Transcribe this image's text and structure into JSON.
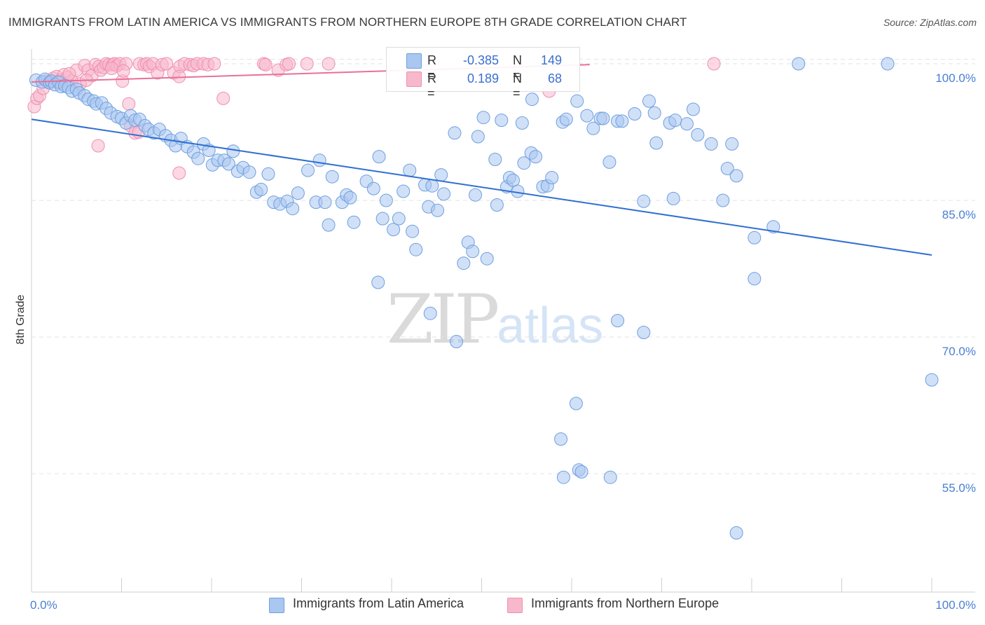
{
  "header": {
    "title": "IMMIGRANTS FROM LATIN AMERICA VS IMMIGRANTS FROM NORTHERN EUROPE 8TH GRADE CORRELATION CHART",
    "source": "Source: ZipAtlas.com"
  },
  "watermark": {
    "zip": "ZIP",
    "atlas": "atlas"
  },
  "legend": {
    "rows": [
      {
        "r_label": "R =",
        "r_value": "-0.385",
        "n_label": "N =",
        "n_value": "149",
        "color": "#a9c7f0"
      },
      {
        "r_label": "R =",
        "r_value": "0.189",
        "n_label": "N =",
        "n_value": "68",
        "color": "#f7b8cc"
      }
    ]
  },
  "bottom_legend": {
    "series1": "Immigrants from Latin America",
    "series2": "Immigrants from Northern Europe"
  },
  "colors": {
    "blue_fill": "#a9c7f0",
    "blue_stroke": "#6f9fe0",
    "blue_line": "#2f6fd1",
    "pink_fill": "#f7b8cc",
    "pink_stroke": "#ef8fb0",
    "pink_line": "#e8709a",
    "grid": "#e3e3e3",
    "tick_text": "#4a7fd4"
  },
  "chart_data": {
    "type": "scatter",
    "title": "IMMIGRANTS FROM LATIN AMERICA VS IMMIGRANTS FROM NORTHERN EUROPE 8TH GRADE CORRELATION CHART",
    "xlabel": "",
    "ylabel": "8th Grade",
    "xlim": [
      0,
      100
    ],
    "ylim": [
      42,
      101
    ],
    "x_tick_labels": [
      "0.0%",
      "100.0%"
    ],
    "y_ticks": [
      55,
      70,
      85,
      100
    ],
    "y_tick_labels": [
      "55.0%",
      "70.0%",
      "85.0%",
      "100.0%"
    ],
    "grid": true,
    "legend_position": "top-center",
    "series": [
      {
        "name": "Immigrants from Latin America",
        "r": -0.385,
        "n": 149,
        "trend": [
          [
            0,
            93.9
          ],
          [
            100,
            79.0
          ]
        ],
        "points": [
          [
            0.5,
            98.2
          ],
          [
            1.2,
            98.0
          ],
          [
            1.5,
            98.3
          ],
          [
            2.0,
            97.9
          ],
          [
            2.2,
            98.1
          ],
          [
            2.6,
            97.7
          ],
          [
            3.0,
            98.0
          ],
          [
            3.3,
            97.5
          ],
          [
            3.7,
            97.6
          ],
          [
            4.1,
            97.4
          ],
          [
            4.5,
            97.0
          ],
          [
            5.0,
            97.2
          ],
          [
            5.3,
            96.8
          ],
          [
            5.9,
            96.5
          ],
          [
            6.3,
            96.1
          ],
          [
            6.9,
            95.9
          ],
          [
            7.2,
            95.6
          ],
          [
            7.8,
            95.7
          ],
          [
            8.3,
            95.1
          ],
          [
            8.8,
            94.6
          ],
          [
            9.5,
            94.2
          ],
          [
            10.0,
            94.0
          ],
          [
            10.5,
            93.5
          ],
          [
            11.0,
            94.3
          ],
          [
            11.5,
            93.8
          ],
          [
            12.0,
            93.9
          ],
          [
            12.6,
            93.2
          ],
          [
            13.0,
            92.8
          ],
          [
            13.6,
            92.4
          ],
          [
            14.2,
            92.8
          ],
          [
            14.9,
            92.1
          ],
          [
            15.5,
            91.6
          ],
          [
            16.0,
            91.0
          ],
          [
            16.6,
            91.8
          ],
          [
            17.3,
            90.9
          ],
          [
            18.0,
            90.3
          ],
          [
            18.5,
            89.6
          ],
          [
            19.1,
            91.2
          ],
          [
            19.7,
            90.5
          ],
          [
            20.1,
            88.9
          ],
          [
            20.7,
            89.4
          ],
          [
            21.4,
            89.4
          ],
          [
            21.9,
            89.0
          ],
          [
            22.4,
            90.4
          ],
          [
            22.9,
            88.2
          ],
          [
            23.5,
            88.6
          ],
          [
            24.2,
            88.1
          ],
          [
            25.0,
            85.9
          ],
          [
            25.5,
            86.2
          ],
          [
            26.3,
            87.9
          ],
          [
            26.9,
            84.8
          ],
          [
            27.6,
            84.6
          ],
          [
            28.4,
            84.9
          ],
          [
            29.0,
            84.1
          ],
          [
            29.6,
            85.8
          ],
          [
            30.7,
            88.3
          ],
          [
            31.6,
            84.8
          ],
          [
            32.0,
            89.4
          ],
          [
            32.6,
            84.8
          ],
          [
            33.4,
            87.6
          ],
          [
            34.5,
            84.8
          ],
          [
            35.0,
            85.6
          ],
          [
            35.8,
            82.6
          ],
          [
            35.4,
            85.3
          ],
          [
            37.2,
            87.1
          ],
          [
            38.0,
            86.3
          ],
          [
            38.6,
            89.8
          ],
          [
            39.0,
            83.0
          ],
          [
            39.4,
            85.0
          ],
          [
            40.2,
            81.8
          ],
          [
            40.8,
            83.0
          ],
          [
            41.3,
            86.0
          ],
          [
            42.0,
            88.3
          ],
          [
            42.3,
            81.6
          ],
          [
            42.7,
            79.6
          ],
          [
            43.7,
            86.7
          ],
          [
            44.1,
            84.3
          ],
          [
            44.5,
            86.6
          ],
          [
            45.1,
            83.9
          ],
          [
            45.5,
            87.8
          ],
          [
            45.8,
            85.7
          ],
          [
            47.0,
            92.4
          ],
          [
            48.0,
            78.1
          ],
          [
            48.5,
            80.4
          ],
          [
            49.0,
            79.4
          ],
          [
            49.3,
            85.6
          ],
          [
            49.6,
            92.0
          ],
          [
            50.2,
            94.1
          ],
          [
            50.6,
            78.6
          ],
          [
            51.5,
            89.5
          ],
          [
            51.7,
            84.5
          ],
          [
            52.2,
            93.8
          ],
          [
            52.8,
            86.5
          ],
          [
            53.1,
            87.5
          ],
          [
            53.5,
            87.2
          ],
          [
            54.0,
            86.0
          ],
          [
            54.5,
            93.5
          ],
          [
            54.7,
            89.1
          ],
          [
            55.5,
            90.2
          ],
          [
            55.6,
            96.1
          ],
          [
            56.0,
            89.8
          ],
          [
            56.8,
            86.5
          ],
          [
            57.3,
            86.6
          ],
          [
            57.8,
            87.5
          ],
          [
            59.0,
            93.6
          ],
          [
            59.4,
            93.9
          ],
          [
            60.6,
            95.9
          ],
          [
            61.7,
            94.3
          ],
          [
            62.4,
            92.9
          ],
          [
            63.2,
            94.0
          ],
          [
            63.5,
            94.0
          ],
          [
            64.2,
            89.2
          ],
          [
            65.1,
            93.7
          ],
          [
            65.6,
            93.7
          ],
          [
            67.0,
            94.5
          ],
          [
            68.0,
            84.9
          ],
          [
            68.6,
            95.9
          ],
          [
            69.2,
            94.6
          ],
          [
            69.4,
            91.3
          ],
          [
            70.9,
            93.5
          ],
          [
            71.3,
            85.2
          ],
          [
            71.5,
            93.8
          ],
          [
            72.8,
            93.4
          ],
          [
            73.5,
            95.0
          ],
          [
            74.0,
            92.2
          ],
          [
            75.5,
            91.2
          ],
          [
            76.8,
            85.0
          ],
          [
            77.3,
            88.5
          ],
          [
            77.8,
            91.2
          ],
          [
            78.3,
            87.7
          ],
          [
            80.3,
            80.9
          ],
          [
            82.4,
            82.1
          ],
          [
            80.3,
            76.4
          ],
          [
            60.5,
            62.7
          ],
          [
            59.1,
            54.6
          ],
          [
            58.8,
            58.8
          ],
          [
            60.8,
            55.4
          ],
          [
            61.1,
            55.2
          ],
          [
            64.3,
            54.6
          ],
          [
            65.1,
            71.8
          ],
          [
            78.3,
            48.5
          ],
          [
            85.2,
            100.0
          ],
          [
            95.1,
            100.0
          ],
          [
            100.0,
            65.3
          ],
          [
            44.3,
            72.6
          ],
          [
            47.2,
            69.5
          ],
          [
            38.5,
            76.0
          ],
          [
            68.0,
            70.5
          ],
          [
            33.0,
            82.3
          ]
        ]
      },
      {
        "name": "Immigrants from Northern Europe",
        "r": 0.189,
        "n": 68,
        "trend": [
          [
            0,
            98.0
          ],
          [
            62,
            99.9
          ]
        ],
        "points": [
          [
            0.3,
            95.3
          ],
          [
            0.6,
            96.2
          ],
          [
            0.9,
            96.5
          ],
          [
            1.3,
            97.3
          ],
          [
            1.6,
            98.1
          ],
          [
            2.0,
            98.0
          ],
          [
            2.4,
            98.4
          ],
          [
            2.8,
            98.6
          ],
          [
            3.2,
            98.2
          ],
          [
            3.6,
            98.8
          ],
          [
            4.0,
            98.5
          ],
          [
            4.5,
            98.1
          ],
          [
            5.0,
            99.3
          ],
          [
            5.4,
            97.8
          ],
          [
            5.9,
            99.8
          ],
          [
            6.3,
            99.3
          ],
          [
            6.7,
            98.7
          ],
          [
            7.1,
            99.9
          ],
          [
            7.5,
            99.7
          ],
          [
            7.7,
            99.3
          ],
          [
            8.0,
            99.6
          ],
          [
            8.3,
            100.0
          ],
          [
            8.6,
            99.9
          ],
          [
            9.0,
            99.9
          ],
          [
            9.2,
            100.0
          ],
          [
            9.5,
            99.8
          ],
          [
            9.8,
            100.0
          ],
          [
            10.1,
            98.1
          ],
          [
            10.5,
            100.0
          ],
          [
            11.0,
            93.2
          ],
          [
            11.5,
            92.4
          ],
          [
            12.0,
            100.0
          ],
          [
            12.5,
            99.9
          ],
          [
            12.8,
            100.0
          ],
          [
            13.1,
            99.7
          ],
          [
            13.5,
            100.0
          ],
          [
            14.0,
            99.0
          ],
          [
            14.5,
            99.9
          ],
          [
            15.0,
            100.0
          ],
          [
            15.8,
            99.0
          ],
          [
            16.5,
            99.7
          ],
          [
            17.0,
            100.0
          ],
          [
            17.6,
            99.9
          ],
          [
            18.0,
            99.8
          ],
          [
            18.4,
            100.0
          ],
          [
            19.1,
            100.0
          ],
          [
            19.6,
            99.9
          ],
          [
            20.3,
            100.0
          ],
          [
            21.3,
            96.2
          ],
          [
            25.8,
            100.0
          ],
          [
            26.0,
            99.9
          ],
          [
            27.4,
            99.3
          ],
          [
            28.3,
            99.9
          ],
          [
            28.6,
            100.0
          ],
          [
            30.6,
            100.0
          ],
          [
            33.0,
            100.0
          ],
          [
            57.5,
            97.0
          ],
          [
            75.8,
            100.0
          ],
          [
            7.4,
            91.0
          ],
          [
            10.8,
            95.6
          ],
          [
            11.9,
            92.5
          ],
          [
            16.4,
            98.6
          ],
          [
            16.4,
            88.0
          ],
          [
            3.1,
            97.9
          ],
          [
            4.2,
            98.9
          ],
          [
            6.1,
            98.2
          ],
          [
            8.9,
            99.5
          ],
          [
            10.2,
            99.2
          ]
        ]
      }
    ]
  }
}
